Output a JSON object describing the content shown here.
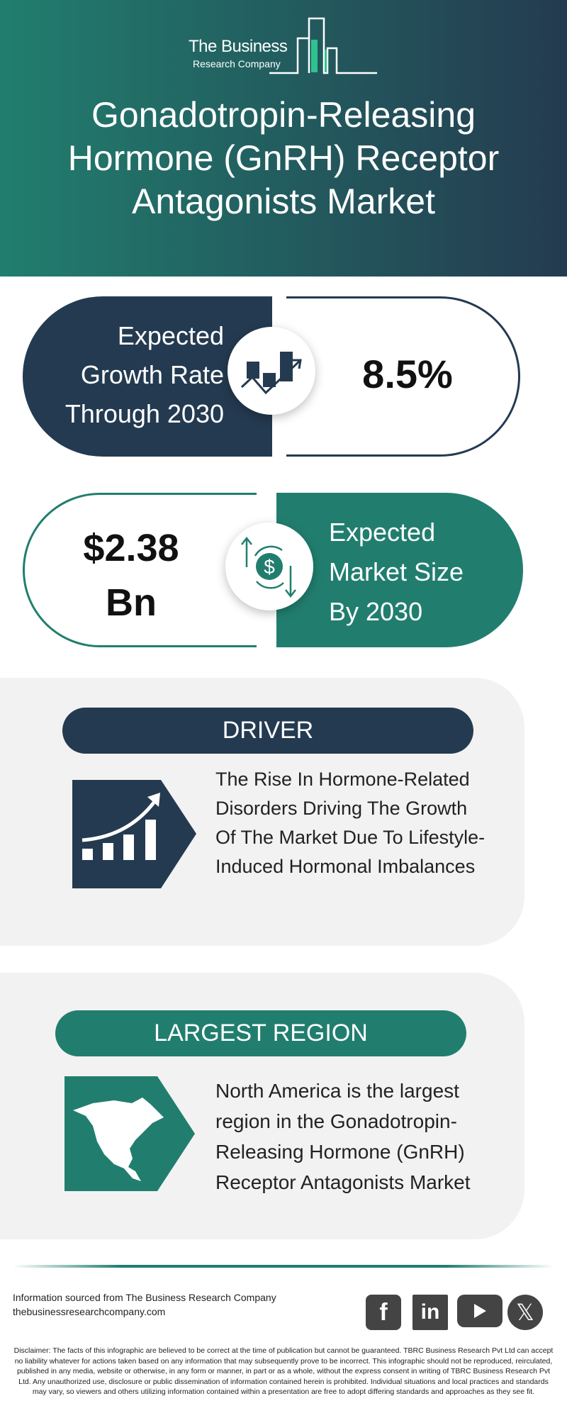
{
  "logo": {
    "line1": "The Business",
    "line2": "Research Company"
  },
  "title": [
    "Gonadotropin-Releasing",
    "Hormone (GnRH) Receptor",
    "Antagonists Market"
  ],
  "growth": {
    "label": [
      "Expected",
      "Growth Rate",
      "Through 2030"
    ],
    "value": "8.5%",
    "icon": "growth-chart-icon"
  },
  "market_size": {
    "value": [
      "$2.38",
      "Bn"
    ],
    "label": [
      "Expected",
      "Market Size",
      "By 2030"
    ],
    "icon": "dollar-exchange-icon"
  },
  "driver": {
    "heading": "DRIVER",
    "text": [
      "The Rise In Hormone-Related",
      "Disorders Driving The Growth",
      "Of The Market Due To Lifestyle-",
      "Induced Hormonal Imbalances"
    ],
    "icon": "rising-bar-chart-icon"
  },
  "region": {
    "heading": "LARGEST REGION",
    "text": [
      "North America is the largest",
      "region in the Gonadotropin-",
      "Releasing Hormone (GnRH)",
      "Receptor Antagonists Market"
    ],
    "icon": "north-america-map-icon"
  },
  "footer": {
    "source": "Information sourced from The Business Research Company",
    "url": "thebusinessresearchcompany.com",
    "social": [
      "facebook",
      "linkedin",
      "youtube",
      "x"
    ]
  },
  "disclaimer": "Disclaimer: The facts of this infographic are believed to be correct at the time of publication but cannot be guaranteed. TBRC Business Research Pvt Ltd can accept no liability whatever for actions taken based on any information that may subsequently prove to be incorrect. This infographic should not be reproduced, reirculated, published in any media, website or otherwise, in any form or manner, in part or as a whole, without the express consent in writing of TBRC Business Research Pvt Ltd. Any unauthorized use, disclosure or public dissemination of information contained herein is prohibited. Individual situations and local practices and standards may vary, so viewers and others utilizing information contained within a presentation are free to adopt differing standards and approaches as they see fit.",
  "colors": {
    "teal": "#217e6e",
    "navy": "#243a50",
    "panel": "#f2f2f2"
  }
}
